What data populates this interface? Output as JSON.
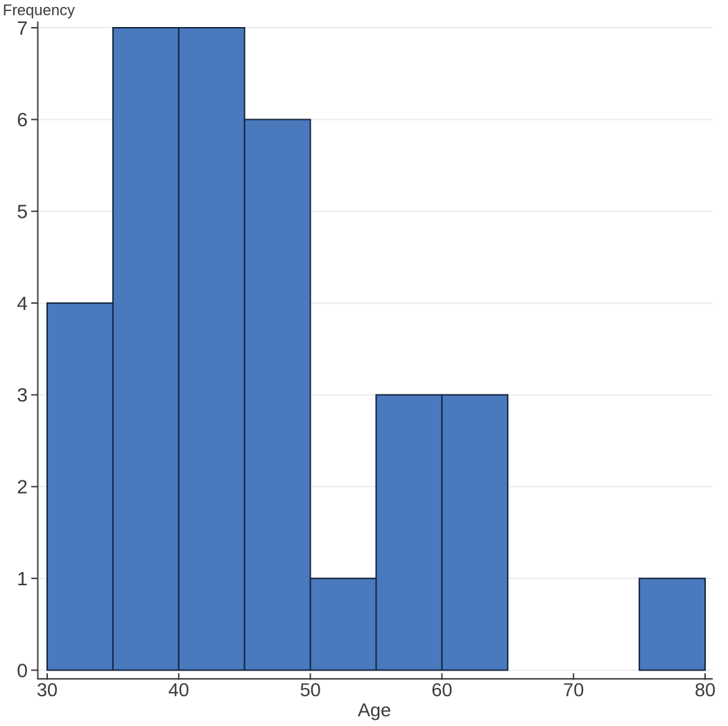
{
  "chart_data": {
    "type": "bar",
    "subtype": "histogram",
    "title": "",
    "xlabel": "Age",
    "ylabel": "Frequency",
    "bin_edges": [
      30,
      35,
      40,
      45,
      50,
      55,
      60,
      65,
      70,
      75,
      80
    ],
    "counts": [
      4,
      7,
      7,
      6,
      1,
      3,
      3,
      0,
      0,
      1
    ],
    "xlim": [
      30,
      80
    ],
    "ylim": [
      0,
      7
    ],
    "x_ticks": [
      30,
      40,
      50,
      60,
      70,
      80
    ],
    "y_ticks": [
      0,
      1,
      2,
      3,
      4,
      5,
      6,
      7
    ],
    "grid": true,
    "legend": false,
    "colors": {
      "bar_fill": "#4a79be",
      "bar_stroke": "#14253e",
      "gridline": "#ececec",
      "axis_line": "#3c3c3c",
      "tick_text": "#3b3b3b",
      "background": "#ffffff"
    }
  }
}
